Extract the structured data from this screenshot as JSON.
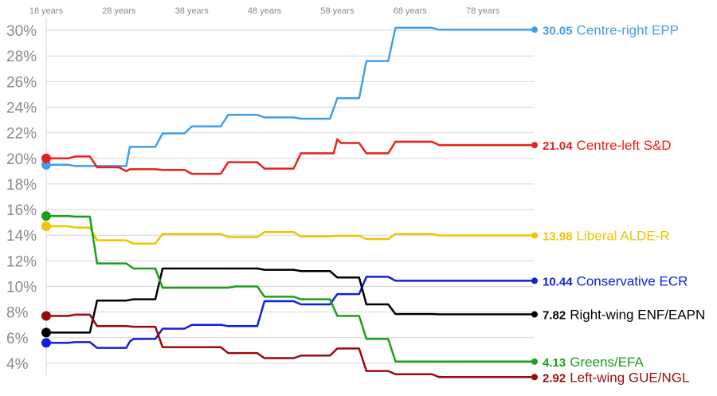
{
  "chart_data": {
    "type": "line",
    "xlabel": "",
    "ylabel": "",
    "xlim": [
      18,
      85
    ],
    "ylim": [
      3,
      31
    ],
    "x_ticks": [
      {
        "value": 18,
        "label": "18 years"
      },
      {
        "value": 28,
        "label": "28 years"
      },
      {
        "value": 38,
        "label": "38 years"
      },
      {
        "value": 48,
        "label": "48 years"
      },
      {
        "value": 58,
        "label": "58 years"
      },
      {
        "value": 68,
        "label": "68 years"
      },
      {
        "value": 78,
        "label": "78 years"
      }
    ],
    "y_ticks": [
      {
        "value": 4,
        "label": "4%"
      },
      {
        "value": 6,
        "label": "6%"
      },
      {
        "value": 8,
        "label": "8%"
      },
      {
        "value": 10,
        "label": "10%"
      },
      {
        "value": 12,
        "label": "12%"
      },
      {
        "value": 14,
        "label": "14%"
      },
      {
        "value": 16,
        "label": "16%"
      },
      {
        "value": 18,
        "label": "18%"
      },
      {
        "value": 20,
        "label": "20%"
      },
      {
        "value": 22,
        "label": "22%"
      },
      {
        "value": 24,
        "label": "24%"
      },
      {
        "value": 26,
        "label": "26%"
      },
      {
        "value": 28,
        "label": "28%"
      },
      {
        "value": 30,
        "label": "30%"
      }
    ],
    "grid": true,
    "series": [
      {
        "name": "Centre-right EPP",
        "end_value": "30.05",
        "color": "#3fa0e8",
        "points": [
          [
            18,
            19.5
          ],
          [
            21,
            19.5
          ],
          [
            22,
            19.4
          ],
          [
            24,
            19.4
          ],
          [
            25,
            19.4
          ],
          [
            29,
            19.4
          ],
          [
            29.5,
            20.9
          ],
          [
            33,
            20.9
          ],
          [
            34,
            21.95
          ],
          [
            37,
            21.95
          ],
          [
            38,
            22.5
          ],
          [
            42,
            22.5
          ],
          [
            43,
            23.4
          ],
          [
            47,
            23.4
          ],
          [
            48,
            23.2
          ],
          [
            52,
            23.2
          ],
          [
            53,
            23.1
          ],
          [
            57,
            23.1
          ],
          [
            58,
            24.7
          ],
          [
            61,
            24.7
          ],
          [
            62,
            27.6
          ],
          [
            65,
            27.6
          ],
          [
            66,
            30.2
          ],
          [
            71,
            30.2
          ],
          [
            72,
            30.05
          ],
          [
            85,
            30.05
          ]
        ]
      },
      {
        "name": "Centre-left S&D",
        "end_value": "21.04",
        "color": "#e82020",
        "points": [
          [
            18,
            20
          ],
          [
            21,
            20
          ],
          [
            22,
            20.15
          ],
          [
            24,
            20.15
          ],
          [
            25,
            19.3
          ],
          [
            28,
            19.3
          ],
          [
            29,
            19.0
          ],
          [
            29.5,
            19.15
          ],
          [
            33,
            19.15
          ],
          [
            34,
            19.1
          ],
          [
            37,
            19.1
          ],
          [
            38,
            18.8
          ],
          [
            42,
            18.8
          ],
          [
            43,
            19.7
          ],
          [
            47,
            19.7
          ],
          [
            48,
            19.2
          ],
          [
            52,
            19.2
          ],
          [
            53,
            20.4
          ],
          [
            57,
            20.4
          ],
          [
            57.5,
            20.4
          ],
          [
            58,
            21.5
          ],
          [
            58.5,
            21.2
          ],
          [
            61,
            21.2
          ],
          [
            62,
            20.4
          ],
          [
            65,
            20.4
          ],
          [
            66,
            21.3
          ],
          [
            71,
            21.3
          ],
          [
            72,
            21.04
          ],
          [
            85,
            21.04
          ]
        ]
      },
      {
        "name": "Liberal ALDE-R",
        "end_value": "13.98",
        "color": "#f0c400",
        "points": [
          [
            18,
            14.7
          ],
          [
            21,
            14.7
          ],
          [
            22,
            14.6
          ],
          [
            24,
            14.6
          ],
          [
            25,
            13.6
          ],
          [
            29,
            13.6
          ],
          [
            30,
            13.35
          ],
          [
            33,
            13.35
          ],
          [
            34,
            14.1
          ],
          [
            42,
            14.1
          ],
          [
            43,
            13.85
          ],
          [
            47,
            13.85
          ],
          [
            48,
            14.25
          ],
          [
            52,
            14.25
          ],
          [
            53,
            13.9
          ],
          [
            57,
            13.9
          ],
          [
            58,
            13.95
          ],
          [
            61,
            13.95
          ],
          [
            62,
            13.7
          ],
          [
            65,
            13.7
          ],
          [
            66,
            14.1
          ],
          [
            71,
            14.1
          ],
          [
            72,
            13.98
          ],
          [
            85,
            13.98
          ]
        ]
      },
      {
        "name": "Conservative ECR",
        "end_value": "10.44",
        "color": "#1020d8",
        "points": [
          [
            18,
            5.6
          ],
          [
            21,
            5.6
          ],
          [
            22,
            5.65
          ],
          [
            24,
            5.65
          ],
          [
            25,
            5.2
          ],
          [
            29,
            5.2
          ],
          [
            29.5,
            5.7
          ],
          [
            30,
            5.9
          ],
          [
            33,
            5.9
          ],
          [
            34,
            6.7
          ],
          [
            37,
            6.7
          ],
          [
            38,
            7.0
          ],
          [
            42,
            7.0
          ],
          [
            43,
            6.9
          ],
          [
            47,
            6.9
          ],
          [
            48,
            8.85
          ],
          [
            52,
            8.85
          ],
          [
            53,
            8.6
          ],
          [
            57,
            8.6
          ],
          [
            58,
            9.4
          ],
          [
            61,
            9.4
          ],
          [
            62,
            10.75
          ],
          [
            65,
            10.75
          ],
          [
            66,
            10.44
          ],
          [
            85,
            10.44
          ]
        ]
      },
      {
        "name": "Right-wing ENF/EAPN",
        "end_value": "7.82",
        "color": "#000000",
        "points": [
          [
            18,
            6.4
          ],
          [
            24,
            6.4
          ],
          [
            25,
            8.9
          ],
          [
            29,
            8.9
          ],
          [
            30,
            9.0
          ],
          [
            33,
            9.0
          ],
          [
            34,
            11.4
          ],
          [
            47,
            11.4
          ],
          [
            48,
            11.3
          ],
          [
            52,
            11.3
          ],
          [
            53,
            11.2
          ],
          [
            57,
            11.2
          ],
          [
            58,
            10.7
          ],
          [
            61,
            10.7
          ],
          [
            62,
            8.6
          ],
          [
            65,
            8.6
          ],
          [
            66,
            7.85
          ],
          [
            71,
            7.85
          ],
          [
            72,
            7.82
          ],
          [
            85,
            7.82
          ]
        ]
      },
      {
        "name": "Greens/EFA",
        "end_value": "4.13",
        "color": "#18a018",
        "points": [
          [
            18,
            15.5
          ],
          [
            21,
            15.5
          ],
          [
            22,
            15.45
          ],
          [
            24,
            15.45
          ],
          [
            25,
            11.8
          ],
          [
            29,
            11.8
          ],
          [
            30,
            11.4
          ],
          [
            33,
            11.4
          ],
          [
            34,
            9.9
          ],
          [
            43,
            9.9
          ],
          [
            44,
            10.0
          ],
          [
            47,
            10.0
          ],
          [
            48,
            9.2
          ],
          [
            52,
            9.2
          ],
          [
            53,
            9.0
          ],
          [
            57,
            9.0
          ],
          [
            58,
            7.7
          ],
          [
            61,
            7.7
          ],
          [
            62,
            5.9
          ],
          [
            65,
            5.9
          ],
          [
            66,
            4.13
          ],
          [
            85,
            4.13
          ]
        ]
      },
      {
        "name": "Left-wing GUE/NGL",
        "end_value": "2.92",
        "color": "#9a0a0a",
        "points": [
          [
            18,
            7.7
          ],
          [
            21,
            7.7
          ],
          [
            22,
            7.8
          ],
          [
            24,
            7.8
          ],
          [
            25,
            6.9
          ],
          [
            29,
            6.9
          ],
          [
            30,
            6.85
          ],
          [
            33,
            6.85
          ],
          [
            34,
            5.25
          ],
          [
            42,
            5.25
          ],
          [
            43,
            4.8
          ],
          [
            47,
            4.8
          ],
          [
            48,
            4.4
          ],
          [
            52,
            4.4
          ],
          [
            53,
            4.6
          ],
          [
            57,
            4.6
          ],
          [
            58,
            5.15
          ],
          [
            61,
            5.15
          ],
          [
            62,
            3.4
          ],
          [
            65,
            3.4
          ],
          [
            66,
            3.15
          ],
          [
            71,
            3.15
          ],
          [
            72,
            2.92
          ],
          [
            85,
            2.92
          ]
        ]
      }
    ]
  }
}
